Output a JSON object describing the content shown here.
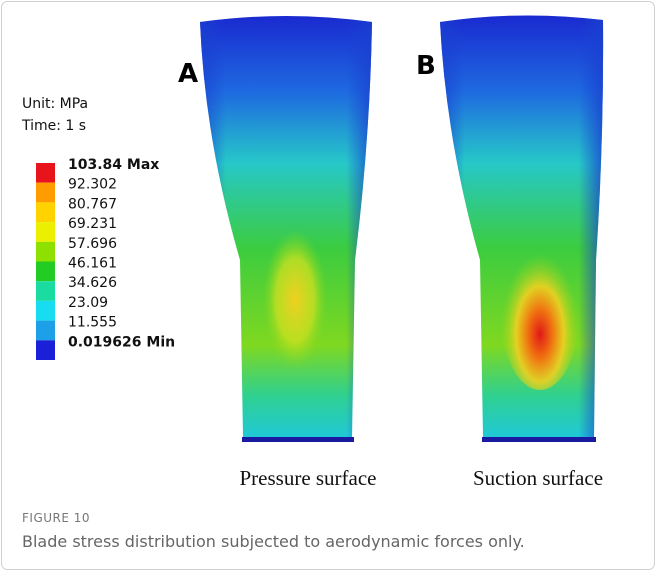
{
  "figure": {
    "panels": [
      {
        "label": "A",
        "caption": "Pressure surface"
      },
      {
        "label": "B",
        "caption": "Suction surface"
      }
    ],
    "legend": {
      "unit": "Unit: MPa",
      "time": "Time: 1 s",
      "levels": [
        {
          "label": "103.84 Max",
          "color": "#e8141b"
        },
        {
          "label": "92.302",
          "color": "#ff9c00"
        },
        {
          "label": "80.767",
          "color": "#ffd200"
        },
        {
          "label": "69.231",
          "color": "#eaf000"
        },
        {
          "label": "57.696",
          "color": "#8ee000"
        },
        {
          "label": "46.161",
          "color": "#22cc22"
        },
        {
          "label": "34.626",
          "color": "#1adca0"
        },
        {
          "label": "23.09",
          "color": "#18dcf0"
        },
        {
          "label": "11.555",
          "color": "#1ea0e8"
        },
        {
          "label": "0.019626 Min",
          "color": "#1a20d8"
        }
      ]
    },
    "number": "FIGURE 10",
    "caption": "Blade stress distribution subjected to aerodynamic forces only."
  }
}
